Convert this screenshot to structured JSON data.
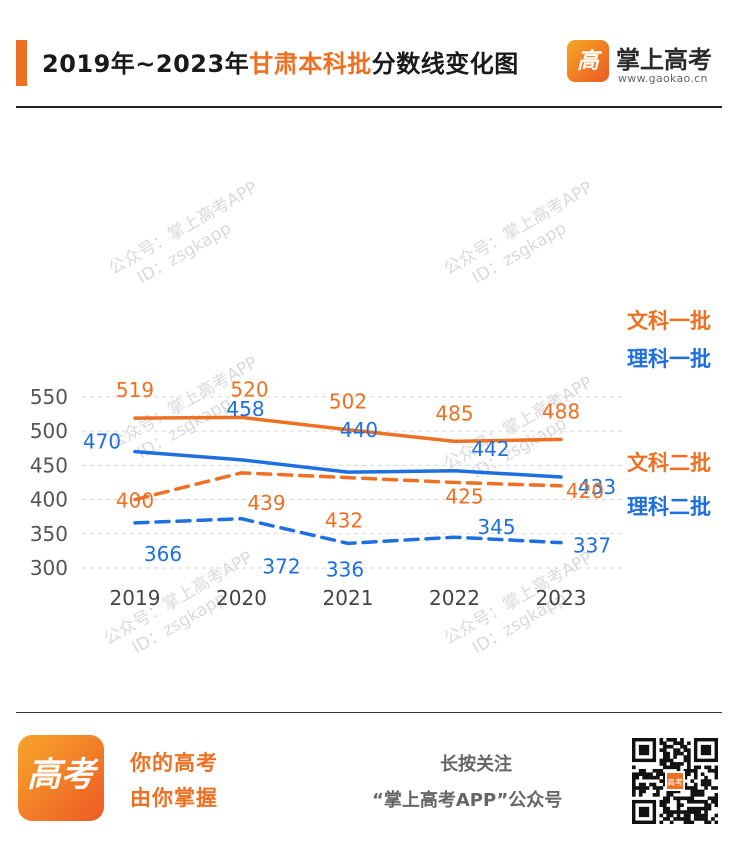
{
  "header": {
    "title_pre": "2019年~2023年",
    "title_highlight": "甘肃本科批",
    "title_post": "分数线变化图",
    "logo_glyph": "高考",
    "brand_name": "掌上高考",
    "brand_url": "www.gaokao.cn"
  },
  "watermark": {
    "line1": "公众号：掌上高考APP",
    "line2": "ID：zsgkapp"
  },
  "chart_data": {
    "type": "line",
    "title": "2019年~2023年甘肃本科批分数线变化图",
    "x": [
      "2019",
      "2020",
      "2021",
      "2022",
      "2023"
    ],
    "ylim": [
      300,
      550
    ],
    "yticks": [
      300,
      350,
      400,
      450,
      500,
      550
    ],
    "grid": "horizontal dashed",
    "legend": "right (labels beside line ends)",
    "series": [
      {
        "name": "文科一批",
        "values": [
          519,
          520,
          502,
          485,
          488
        ],
        "color": "#ee7022",
        "style": "solid"
      },
      {
        "name": "理科一批",
        "values": [
          470,
          458,
          440,
          442,
          433
        ],
        "color": "#1e6fe0",
        "style": "solid"
      },
      {
        "name": "文科二批",
        "values": [
          400,
          439,
          432,
          425,
          420
        ],
        "color": "#ee7022",
        "style": "dashed"
      },
      {
        "name": "理科二批",
        "values": [
          366,
          372,
          336,
          345,
          337
        ],
        "color": "#1e6fe0",
        "style": "dashed"
      }
    ]
  },
  "footer": {
    "logo_glyph": "高考",
    "slogan_line1": "你的高考",
    "slogan_line2": "由你掌握",
    "follow_line1": "长按关注",
    "follow_line2": "“掌上高考APP”公众号",
    "qr_badge": "高考"
  }
}
